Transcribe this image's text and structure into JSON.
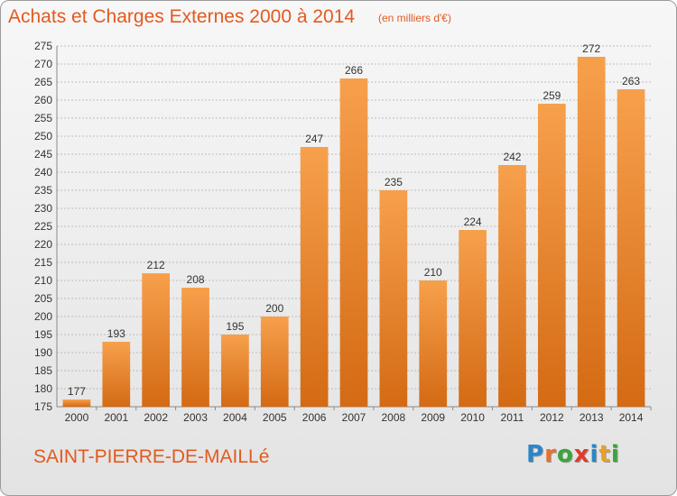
{
  "header": {
    "title": "Achats et Charges Externes 2000 à 2014",
    "unit": "(en milliers d'€)"
  },
  "footer": {
    "place": "SAINT-PIERRE-DE-MAILLé",
    "logo_letters": [
      "P",
      "r",
      "o",
      "x",
      "i",
      "t",
      "i"
    ],
    "logo_colors": [
      "#2a86c8",
      "#e8702a",
      "#3aa63a",
      "#e23a2a",
      "#2a86c8",
      "#e8a02a",
      "#3aa63a"
    ]
  },
  "colors": {
    "bar_light": "#f7a04c",
    "bar_dark": "#d46a14",
    "grid": "#bdbdbd",
    "accent": "#e25a1f"
  },
  "chart_data": {
    "type": "bar",
    "categories": [
      "2000",
      "2001",
      "2002",
      "2003",
      "2004",
      "2005",
      "2006",
      "2007",
      "2008",
      "2009",
      "2010",
      "2011",
      "2012",
      "2013",
      "2014"
    ],
    "values": [
      177,
      193,
      212,
      208,
      195,
      200,
      247,
      266,
      235,
      210,
      224,
      242,
      259,
      272,
      263
    ],
    "ylim": [
      175,
      275
    ],
    "ytick_step": 5,
    "grid": true,
    "data_labels": true,
    "title": "Achats et Charges Externes 2000 à 2014",
    "xlabel": "",
    "ylabel": ""
  }
}
